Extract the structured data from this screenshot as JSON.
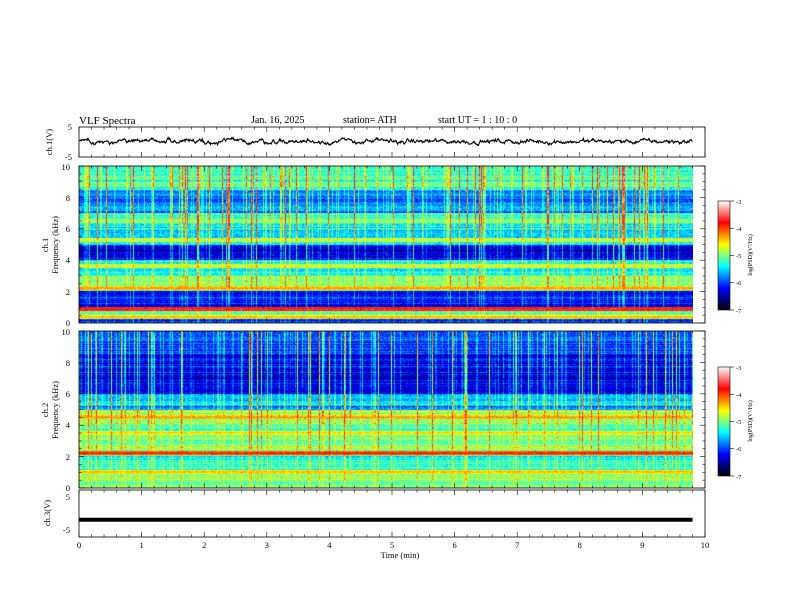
{
  "header": {
    "title": "VLF  Spectra",
    "date": "Jan. 16, 2025",
    "station": "station= ATH",
    "start_ut": "start  UT  =   1  : 10 : 0"
  },
  "colors": {
    "background": "#ffffff",
    "axis": "#000000",
    "colormap": [
      "#000000",
      "#00007f",
      "#0000ff",
      "#007fff",
      "#00ffff",
      "#7fff7f",
      "#ffff00",
      "#ff7f00",
      "#ff0000",
      "#ff8080",
      "#ffffff"
    ]
  },
  "chart_data": [
    {
      "type": "line",
      "id": "ch1_waveform",
      "ylabel": "ch.1(V)",
      "yticks": [
        "5",
        "-5"
      ],
      "ylim": [
        -5,
        5
      ],
      "xlim": [
        0,
        10
      ],
      "data_extent_x": [
        0,
        9.8
      ],
      "series": [
        {
          "values_mean": 0.2,
          "values_amplitude": 1.0
        }
      ]
    },
    {
      "type": "heatmap",
      "id": "ch1_spectrogram",
      "ylabel_1": "ch.1",
      "ylabel_2": "Frequency  (kHz)",
      "yticks": [
        "0",
        "2",
        "4",
        "6",
        "8",
        "10"
      ],
      "ylim": [
        0,
        10
      ],
      "xlim": [
        0,
        10
      ],
      "data_extent_x": [
        0,
        9.8
      ],
      "color_value_range": [
        -7,
        -3
      ],
      "bands": [
        {
          "f_range": [
            8.5,
            10.0
          ],
          "level": -5.2
        },
        {
          "f_range": [
            7.0,
            8.5
          ],
          "level": -5.8
        },
        {
          "f_range": [
            6.0,
            7.0
          ],
          "level": -5.3
        },
        {
          "f_range": [
            5.0,
            6.0
          ],
          "level": -5.5
        },
        {
          "f_range": [
            4.0,
            5.0
          ],
          "level": -6.3
        },
        {
          "f_range": [
            3.0,
            4.0
          ],
          "level": -5.4
        },
        {
          "f_range": [
            2.0,
            3.0
          ],
          "level": -5.0
        },
        {
          "f_range": [
            1.0,
            2.0
          ],
          "level": -6.2
        },
        {
          "f_range": [
            0.5,
            1.0
          ],
          "level": -5.2
        },
        {
          "f_range": [
            0.0,
            0.5
          ],
          "level": -5.8
        }
      ],
      "lines": [
        {
          "f": 6.5,
          "level": -4.8
        },
        {
          "f": 5.3,
          "level": -4.6
        },
        {
          "f": 3.6,
          "level": -4.5
        },
        {
          "f": 2.2,
          "level": -4.2
        },
        {
          "f": 0.85,
          "level": -3.6
        },
        {
          "f": 0.35,
          "level": -4.3
        }
      ]
    },
    {
      "type": "heatmap",
      "id": "ch2_spectrogram",
      "ylabel_1": "ch.2",
      "ylabel_2": "Frequency  (kHz)",
      "yticks": [
        "0",
        "2",
        "4",
        "6",
        "8",
        "10"
      ],
      "ylim": [
        0,
        10
      ],
      "xlim": [
        0,
        10
      ],
      "data_extent_x": [
        0,
        9.8
      ],
      "color_value_range": [
        -7,
        -3
      ],
      "bands": [
        {
          "f_range": [
            8.5,
            10.0
          ],
          "level": -6.0
        },
        {
          "f_range": [
            6.0,
            8.5
          ],
          "level": -6.3
        },
        {
          "f_range": [
            5.0,
            6.0
          ],
          "level": -5.6
        },
        {
          "f_range": [
            4.0,
            5.0
          ],
          "level": -5.0
        },
        {
          "f_range": [
            3.0,
            4.0
          ],
          "level": -5.1
        },
        {
          "f_range": [
            2.0,
            3.0
          ],
          "level": -5.0
        },
        {
          "f_range": [
            1.0,
            2.0
          ],
          "level": -5.3
        },
        {
          "f_range": [
            0.0,
            1.0
          ],
          "level": -5.0
        }
      ],
      "lines": [
        {
          "f": 4.5,
          "level": -4.2
        },
        {
          "f": 3.5,
          "level": -4.4
        },
        {
          "f": 2.2,
          "level": -3.8
        },
        {
          "f": 1.0,
          "level": -4.3
        }
      ]
    },
    {
      "type": "line",
      "id": "ch3_waveform",
      "ylabel": "ch.3(V)",
      "yticks": [
        "5",
        "-5"
      ],
      "ylim": [
        -5,
        5
      ],
      "xlim": [
        0,
        10
      ],
      "data_extent_x": [
        0,
        9.8
      ],
      "series": [
        {
          "values_mean": -2.0,
          "values_amplitude": 0.1
        }
      ]
    }
  ],
  "colorbars": [
    {
      "ticks": [
        "-3",
        "-4",
        "-5",
        "-6",
        "-7"
      ],
      "range": [
        -7,
        -3
      ],
      "label": "log(PSD)(V²/Hz)"
    },
    {
      "ticks": [
        "-3",
        "-4",
        "-5",
        "-6",
        "-7"
      ],
      "range": [
        -7,
        -3
      ],
      "label": "log(PSD)(V²/Hz)"
    }
  ],
  "xaxis": {
    "label": "Time  (min)",
    "ticks": [
      "0",
      "1",
      "2",
      "3",
      "4",
      "5",
      "6",
      "7",
      "8",
      "9",
      "10"
    ],
    "range": [
      0,
      10
    ]
  }
}
